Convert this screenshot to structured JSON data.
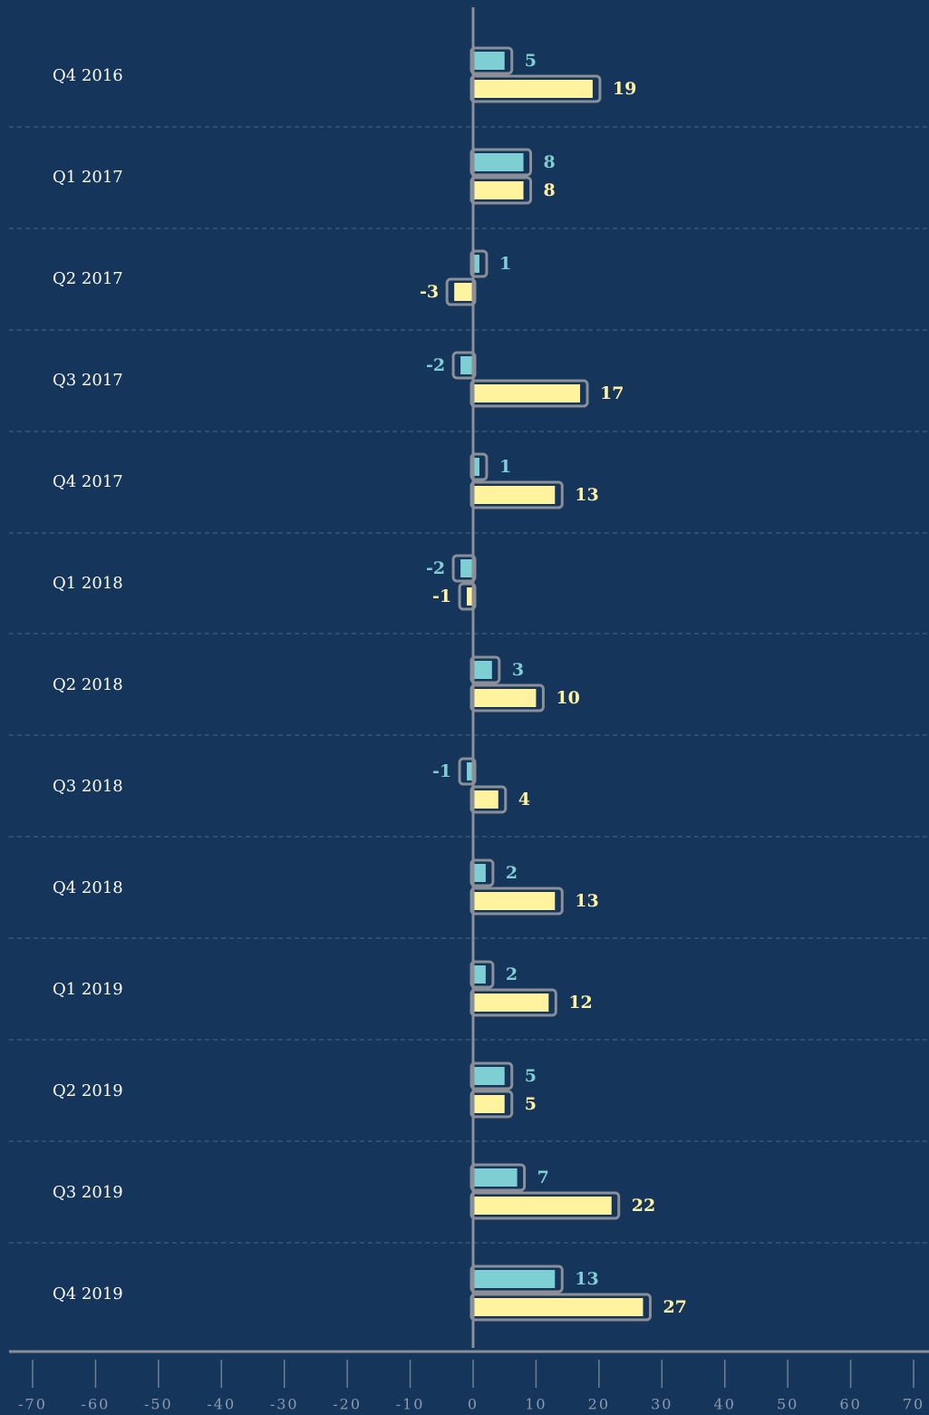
{
  "chart_data": {
    "type": "bar",
    "orientation": "horizontal",
    "categories": [
      "Q4 2016",
      "Q1 2017",
      "Q2 2017",
      "Q3 2017",
      "Q4 2017",
      "Q1 2018",
      "Q2 2018",
      "Q3 2018",
      "Q4 2018",
      "Q1 2019",
      "Q2 2019",
      "Q3 2019",
      "Q4 2019"
    ],
    "series": [
      {
        "color": "#7ecfd4",
        "values": [
          5,
          8,
          1,
          -2,
          1,
          -2,
          3,
          -1,
          2,
          2,
          5,
          7,
          13
        ]
      },
      {
        "color": "#fff3a0",
        "values": [
          19,
          8,
          -3,
          17,
          13,
          -1,
          10,
          4,
          13,
          12,
          5,
          22,
          27
        ]
      }
    ],
    "xlim": [
      -70,
      70
    ],
    "xticks": [
      -70,
      -60,
      -50,
      -40,
      -30,
      -20,
      -10,
      0,
      10,
      20,
      30,
      40,
      50,
      60,
      70
    ]
  }
}
